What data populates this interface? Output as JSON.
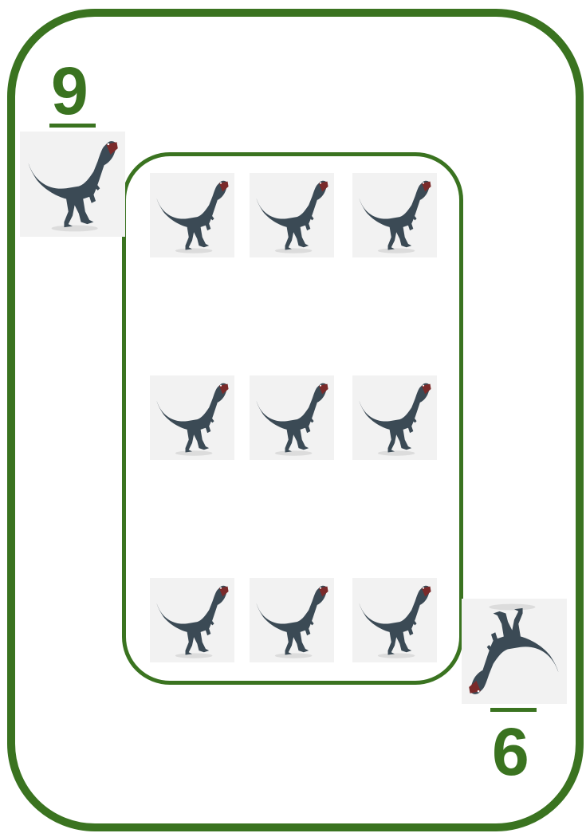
{
  "card": {
    "rank_top": "9",
    "rank_bottom": "6",
    "suit_icon": "raptor-icon",
    "pip_count": 9,
    "colors": {
      "border": "#3a7320",
      "rank": "#3a7320",
      "pip_background": "#f2f2f2",
      "raptor_body": "#3b4a55",
      "raptor_mouth": "#7a2a2a"
    }
  }
}
